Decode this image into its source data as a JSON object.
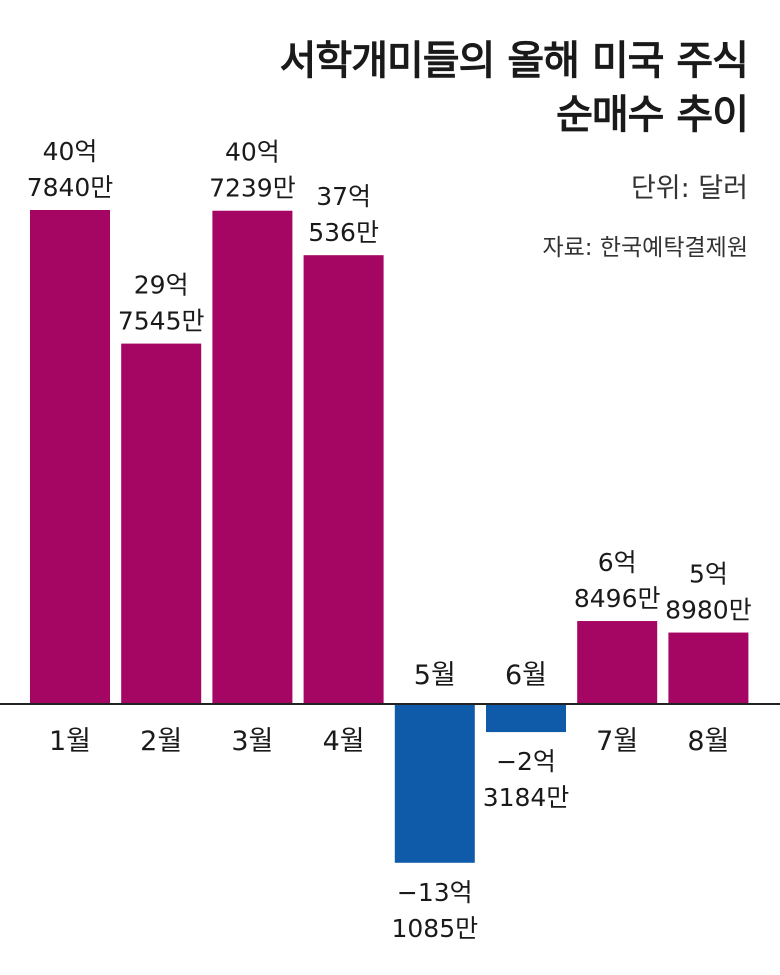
{
  "chart_data": {
    "type": "bar",
    "title_lines": [
      "서학개미들의 올해 미국 주식",
      "순매수 추이"
    ],
    "unit_note": "단위: 달러",
    "source": "자료: 한국예탁결제원",
    "categories": [
      "1월",
      "2월",
      "3월",
      "4월",
      "5월",
      "6월",
      "7월",
      "8월"
    ],
    "values": [
      4078400000,
      2975450000,
      4072390000,
      3705360000,
      -1310850000,
      -231840000,
      684960000,
      589800000
    ],
    "labels": [
      [
        "40억",
        "7840만"
      ],
      [
        "29억",
        "7545만"
      ],
      [
        "40억",
        "7239만"
      ],
      [
        "37억",
        "536만"
      ],
      [
        "−13억",
        "1085만"
      ],
      [
        "−2억",
        "3184만"
      ],
      [
        "6억",
        "8496만"
      ],
      [
        "5억",
        "8980만"
      ]
    ],
    "colors": {
      "positive": "#A50563",
      "negative": "#0F5BAA"
    }
  }
}
